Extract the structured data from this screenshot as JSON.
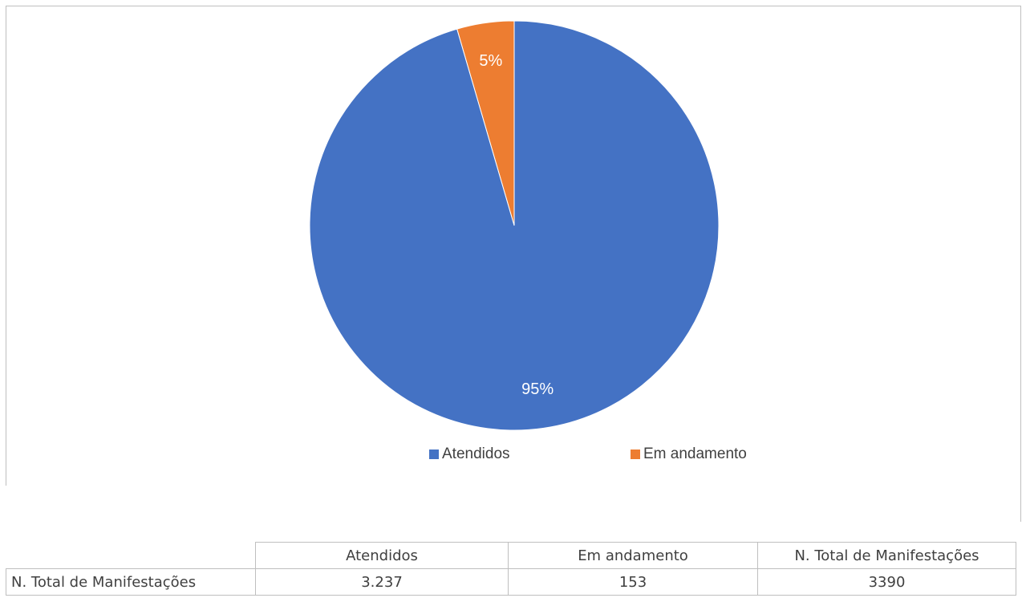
{
  "chart_data": {
    "type": "pie",
    "slices": [
      {
        "name": "Em andamento",
        "value": 153,
        "label": "5%",
        "color": "#ed7d31"
      },
      {
        "name": "Atendidos",
        "value": 3237,
        "label": "95%",
        "color": "#4472c4"
      }
    ],
    "start_angle": 0,
    "direction": "counterclockwise",
    "legend": {
      "placement": "bottom",
      "items": [
        {
          "label": "Atendidos",
          "color": "#4472c4"
        },
        {
          "label": "Em andamento",
          "color": "#ed7d31"
        }
      ]
    }
  },
  "table": {
    "columns": [
      "Atendidos",
      "Em andamento",
      "N. Total de Manifestações"
    ],
    "rows": [
      {
        "label": "N. Total de Manifestações",
        "values": [
          "3.237",
          "153",
          "3390"
        ]
      }
    ]
  }
}
